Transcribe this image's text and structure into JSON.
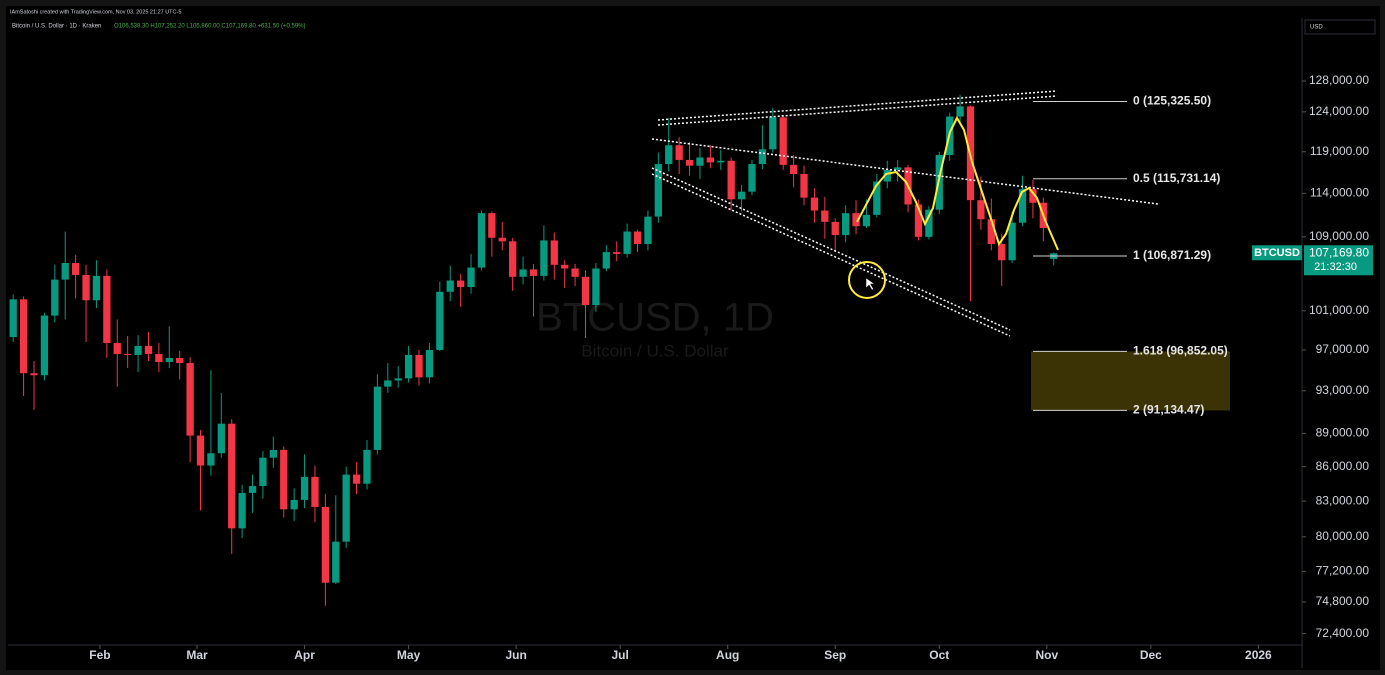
{
  "chart_data": {
    "type": "candlestick",
    "title": "BTCUSD, 1D",
    "subtitle": "Bitcoin / U.S. Dollar",
    "attribution": "IAmSatoshi created with TradingView.com, Nov 03, 2025 21:27 UTC-5",
    "header": "Bitcoin / U.S. Dollar · 1D · Kraken",
    "header_ohlc": "O106,538.30 H107,252.20 L105,860.00 C107,169.80 +631.50 (+0.59%)",
    "currency": "USD",
    "symbol_tag": "BTCUSD",
    "last_price": 107169.8,
    "last_price_label": "107,169.80",
    "countdown": "21:32:30",
    "log_scale": true,
    "colors": {
      "up": "#089981",
      "down": "#f23645",
      "fib_zone": "#3b3206"
    },
    "x": [
      6,
      9,
      12,
      15,
      18,
      21,
      24,
      27,
      30,
      33,
      36,
      39,
      42,
      45,
      48,
      51,
      54,
      57,
      60,
      63,
      66,
      69,
      72,
      75,
      78,
      81,
      84,
      87,
      90,
      93,
      96,
      99,
      102,
      105,
      108,
      111,
      114,
      117,
      120,
      123,
      126,
      129,
      132,
      135,
      138,
      141,
      144,
      147,
      150,
      153,
      156,
      159,
      162,
      165,
      168,
      171,
      174,
      177,
      180,
      183,
      186,
      189,
      192,
      195,
      198,
      201,
      204,
      207,
      210,
      213,
      216,
      219,
      222,
      225,
      228,
      231,
      234,
      237,
      240,
      243,
      246,
      249,
      252,
      255,
      258,
      261,
      264,
      267,
      270,
      273,
      276,
      279,
      282,
      285,
      288,
      291,
      294,
      297,
      300,
      303,
      306
    ],
    "open": [
      98300,
      102200,
      94700,
      94500,
      100500,
      104300,
      106100,
      104800,
      102100,
      104700,
      97700,
      96600,
      96500,
      97400,
      96600,
      95800,
      96200,
      95700,
      88800,
      86100,
      87200,
      89900,
      80700,
      83700,
      84300,
      86800,
      87500,
      82300,
      83100,
      85100,
      82500,
      76300,
      79600,
      85300,
      84500,
      87500,
      93400,
      94000,
      94200,
      96500,
      94300,
      97000,
      103000,
      104200,
      103500,
      105600,
      111700,
      108900,
      108500,
      104600,
      105400,
      104700,
      108600,
      105900,
      105500,
      104600,
      101600,
      105500,
      107300,
      107100,
      109600,
      108200,
      111300,
      117500,
      119800,
      118000,
      117300,
      118300,
      117700,
      117900,
      113300,
      114200,
      117500,
      119300,
      123300,
      117400,
      116300,
      113500,
      112000,
      110700,
      109200,
      111700,
      110200,
      111500,
      115400,
      116800,
      117100,
      112700,
      109000,
      112100,
      118600,
      123400,
      124700,
      113200,
      111000,
      108200,
      106400,
      110600,
      114500,
      112900,
      106538.3
    ],
    "high": [
      102700,
      102500,
      95900,
      100800,
      105900,
      109600,
      107000,
      105900,
      106400,
      105400,
      100100,
      98400,
      98500,
      98800,
      97700,
      99400,
      96900,
      96300,
      89300,
      95000,
      92800,
      90300,
      84400,
      85300,
      87400,
      88700,
      87800,
      84100,
      87100,
      86100,
      83600,
      83500,
      86000,
      86400,
      88400,
      94600,
      95700,
      95400,
      97400,
      97000,
      97700,
      104100,
      105800,
      104900,
      107100,
      112000,
      111900,
      110700,
      108900,
      106800,
      106000,
      110300,
      109500,
      106400,
      106000,
      105300,
      106100,
      108100,
      108500,
      110500,
      109800,
      112000,
      118900,
      123200,
      120800,
      120200,
      119500,
      119800,
      119200,
      118300,
      115000,
      118000,
      122300,
      124500,
      123600,
      118600,
      117300,
      114600,
      113600,
      111100,
      112600,
      113200,
      113300,
      116300,
      117900,
      118000,
      117400,
      113300,
      112500,
      119000,
      123900,
      126200,
      124800,
      116000,
      113400,
      109300,
      111900,
      116100,
      115600,
      113500,
      107252.2
    ],
    "low": [
      97800,
      92500,
      91200,
      94000,
      99800,
      100100,
      102300,
      97800,
      101300,
      96200,
      93400,
      95200,
      94800,
      95900,
      94800,
      95200,
      94100,
      86400,
      82200,
      85200,
      86800,
      78600,
      79900,
      82000,
      83200,
      85900,
      81600,
      81300,
      82400,
      81200,
      74500,
      76200,
      79100,
      83600,
      84000,
      87100,
      92800,
      93300,
      93800,
      93500,
      93700,
      96900,
      102000,
      101400,
      102800,
      105300,
      106800,
      107500,
      103100,
      103800,
      100400,
      104200,
      104300,
      103400,
      103600,
      98200,
      100900,
      105200,
      106300,
      106700,
      107300,
      107500,
      110600,
      116600,
      116300,
      116100,
      115700,
      117000,
      116800,
      112000,
      111900,
      113800,
      116900,
      118900,
      116800,
      114700,
      112600,
      110600,
      108800,
      107300,
      108400,
      109300,
      110000,
      111200,
      114600,
      115400,
      111800,
      108600,
      108700,
      111600,
      117900,
      122500,
      102000,
      109800,
      107500,
      103600,
      106100,
      110200,
      111100,
      108500,
      105860
    ],
    "close": [
      102200,
      94700,
      94500,
      100500,
      104300,
      106100,
      104800,
      102100,
      104700,
      97700,
      96600,
      96500,
      97400,
      96600,
      95800,
      96200,
      95700,
      88800,
      86100,
      87200,
      89900,
      80700,
      83700,
      84300,
      86800,
      87500,
      82300,
      83100,
      85100,
      82500,
      76300,
      79600,
      85300,
      84500,
      87500,
      93400,
      94000,
      94200,
      96500,
      94300,
      97000,
      103000,
      104200,
      103500,
      105600,
      111700,
      108900,
      108500,
      104600,
      105400,
      104700,
      108600,
      105900,
      105500,
      104600,
      101600,
      105500,
      107300,
      107100,
      109600,
      108200,
      111300,
      117500,
      119800,
      118000,
      117300,
      118300,
      117700,
      117900,
      113300,
      114200,
      117500,
      119300,
      123300,
      117400,
      116300,
      113500,
      112000,
      110700,
      109200,
      111700,
      110200,
      111500,
      115400,
      116800,
      117100,
      112700,
      109000,
      112100,
      118600,
      123400,
      124700,
      113200,
      111000,
      108200,
      106400,
      110600,
      114500,
      112900,
      110000,
      107169.8
    ],
    "xlim": [
      4.5,
      377
    ],
    "xticks": [
      {
        "value": 31,
        "label": "Feb"
      },
      {
        "value": 59,
        "label": "Mar"
      },
      {
        "value": 90,
        "label": "Apr"
      },
      {
        "value": 120,
        "label": "May"
      },
      {
        "value": 151,
        "label": "Jun"
      },
      {
        "value": 181,
        "label": "Jul"
      },
      {
        "value": 212,
        "label": "Aug"
      },
      {
        "value": 243,
        "label": "Sep"
      },
      {
        "value": 273,
        "label": "Oct"
      },
      {
        "value": 304,
        "label": "Nov"
      },
      {
        "value": 334,
        "label": "Dec"
      },
      {
        "value": 365,
        "label": "2026"
      }
    ],
    "ylim": [
      71700,
      136600
    ],
    "yticks": [
      {
        "value": 128000,
        "label": "128,000.00"
      },
      {
        "value": 124000,
        "label": "124,000.00"
      },
      {
        "value": 119000,
        "label": "119,000.00"
      },
      {
        "value": 114000,
        "label": "114,000.00"
      },
      {
        "value": 109000,
        "label": "109,000.00"
      },
      {
        "value": 101000,
        "label": "101,000.00"
      },
      {
        "value": 97000,
        "label": "97,000.00"
      },
      {
        "value": 93000,
        "label": "93,000.00"
      },
      {
        "value": 89000,
        "label": "89,000.00"
      },
      {
        "value": 86000,
        "label": "86,000.00"
      },
      {
        "value": 83000,
        "label": "83,000.00"
      },
      {
        "value": 80000,
        "label": "80,000.00"
      },
      {
        "value": 77200,
        "label": "77,200.00"
      },
      {
        "value": 74800,
        "label": "74,800.00"
      },
      {
        "value": 72400,
        "label": "72,400.00"
      }
    ],
    "fib_levels": [
      {
        "value": 125325.5,
        "label": "0 (125,325.50)"
      },
      {
        "value": 115731.14,
        "label": "0.5 (115,731.14)"
      },
      {
        "value": 106871.29,
        "label": "1 (106,871.29)"
      },
      {
        "value": 96852.05,
        "label": "1.618 (96,852.05)"
      },
      {
        "value": 91134.47,
        "label": "2 (91,134.47)"
      }
    ]
  }
}
